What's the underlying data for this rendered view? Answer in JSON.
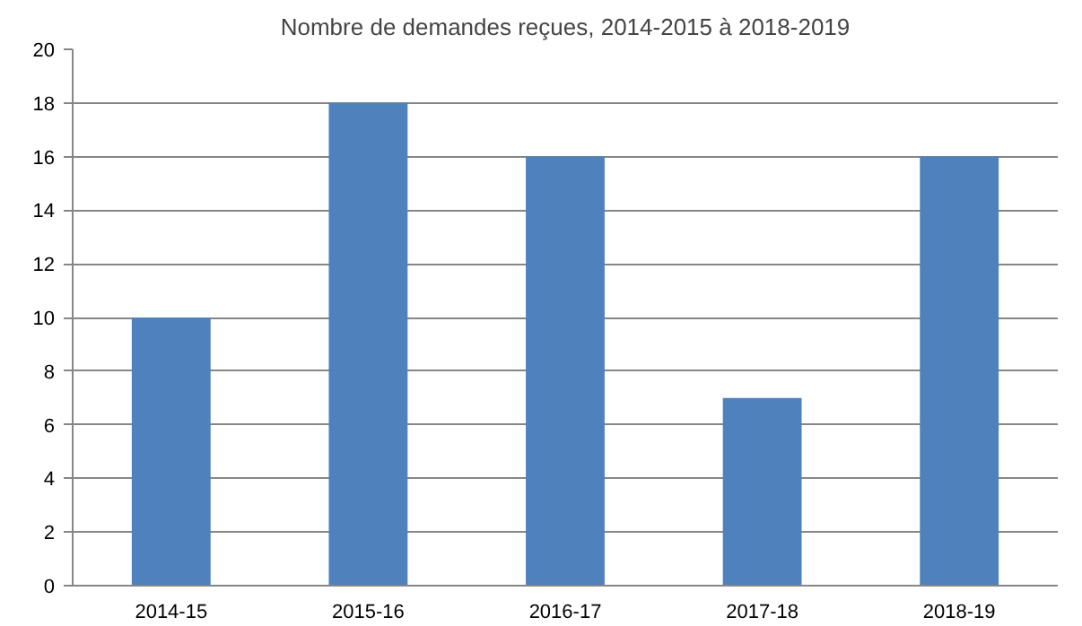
{
  "chart_data": {
    "type": "bar",
    "title": "Nombre de demandes reçues, 2014-2015 à 2018-2019",
    "categories": [
      "2014-15",
      "2015-16",
      "2016-17",
      "2017-18",
      "2018-19"
    ],
    "values": [
      10,
      18,
      16,
      7,
      16
    ],
    "color": "#4f81bd",
    "ylim": [
      0,
      20
    ],
    "yticks": [
      0,
      2,
      4,
      6,
      8,
      10,
      12,
      14,
      16,
      18,
      20
    ],
    "grid": "y"
  }
}
